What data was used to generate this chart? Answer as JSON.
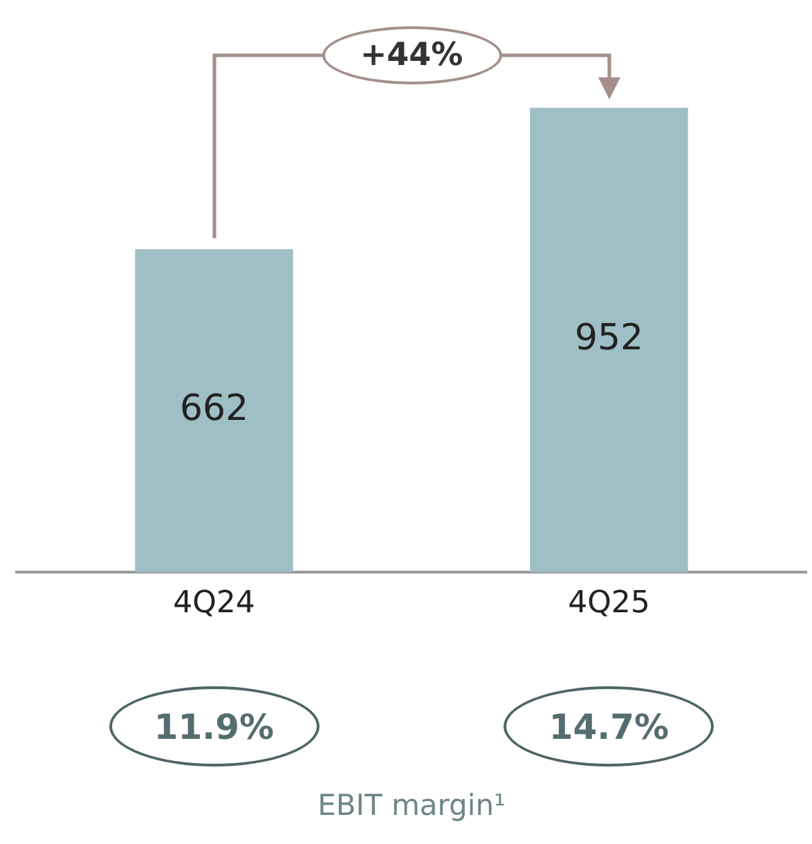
{
  "chart_data": {
    "type": "bar",
    "categories": [
      "4Q24",
      "4Q25"
    ],
    "values": [
      662,
      952
    ],
    "color": "#9fbfc6",
    "data_labels": true,
    "grid": false,
    "legend": false,
    "tick_labels": "x",
    "annotations": [
      "+44%",
      "11.9%",
      "14.7%",
      "EBIT margin¹"
    ]
  }
}
